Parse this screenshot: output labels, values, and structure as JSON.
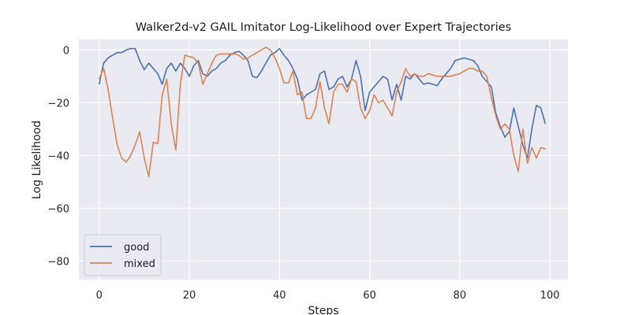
{
  "chart_data": {
    "type": "line",
    "title": "Walker2d-v2 GAIL Imitator Log-Likelihood over Expert Trajectories",
    "xlabel": "Steps",
    "ylabel": "Log Likelihood",
    "xlim": [
      -4.5,
      104
    ],
    "ylim": [
      -87,
      4
    ],
    "xticks": [
      0,
      20,
      40,
      60,
      80,
      100
    ],
    "yticks": [
      0,
      -20,
      -40,
      -60,
      -80
    ],
    "grid": true,
    "legend_position": "lower-left",
    "series": [
      {
        "name": "good",
        "color": "#4c72b0",
        "x": [
          0,
          1,
          2,
          3,
          4,
          5,
          6,
          7,
          8,
          9,
          10,
          11,
          12,
          13,
          14,
          15,
          16,
          17,
          18,
          19,
          20,
          21,
          22,
          23,
          24,
          25,
          26,
          27,
          28,
          29,
          30,
          31,
          32,
          33,
          34,
          35,
          36,
          37,
          38,
          39,
          40,
          41,
          42,
          43,
          44,
          45,
          46,
          47,
          48,
          49,
          50,
          51,
          52,
          53,
          54,
          55,
          56,
          57,
          58,
          59,
          60,
          61,
          62,
          63,
          64,
          65,
          66,
          67,
          68,
          69,
          70,
          71,
          72,
          73,
          74,
          75,
          76,
          77,
          78,
          79,
          80,
          81,
          82,
          83,
          84,
          85,
          86,
          87,
          88,
          89,
          90,
          91,
          92,
          93,
          94,
          95,
          96,
          97,
          98,
          99
        ],
        "y": [
          -13,
          -5,
          -3,
          -2,
          -1,
          -1,
          0,
          0.5,
          0.5,
          -4,
          -7.5,
          -5,
          -7,
          -9,
          -13,
          -7,
          -5,
          -8,
          -5,
          -7,
          -10,
          -6,
          -4,
          -9,
          -10,
          -8,
          -7,
          -5,
          -4,
          -2,
          -1,
          -0.5,
          -2,
          -4,
          -10,
          -10.5,
          -8,
          -5,
          -2,
          -1,
          0.5,
          -2,
          -4,
          -7,
          -11,
          -19,
          -17,
          -16,
          -15,
          -9,
          -8,
          -15,
          -14,
          -11,
          -10,
          -14,
          -11,
          -4,
          -10,
          -23,
          -16,
          -14,
          -12,
          -10,
          -11,
          -19,
          -13,
          -19,
          -10,
          -11,
          -9,
          -11,
          -13,
          -12.5,
          -13,
          -13.5,
          -11,
          -9,
          -7,
          -4,
          -3.5,
          -3,
          -3.5,
          -4,
          -6,
          -10,
          -12,
          -14,
          -24,
          -29,
          -33,
          -31,
          -22,
          -29,
          -36,
          -41,
          -30,
          -21,
          -22,
          -28
        ]
      },
      {
        "name": "mixed",
        "color": "#dd8452",
        "x": [
          0,
          1,
          2,
          3,
          4,
          5,
          6,
          7,
          8,
          9,
          10,
          11,
          12,
          13,
          14,
          15,
          16,
          17,
          18,
          19,
          20,
          21,
          22,
          23,
          24,
          25,
          26,
          27,
          28,
          29,
          30,
          31,
          32,
          33,
          34,
          35,
          36,
          37,
          38,
          39,
          40,
          41,
          42,
          43,
          44,
          45,
          46,
          47,
          48,
          49,
          50,
          51,
          52,
          53,
          54,
          55,
          56,
          57,
          58,
          59,
          60,
          61,
          62,
          63,
          64,
          65,
          66,
          67,
          68,
          69,
          70,
          71,
          72,
          73,
          74,
          75,
          76,
          77,
          78,
          79,
          80,
          81,
          82,
          83,
          84,
          85,
          86,
          87,
          88,
          89,
          90,
          91,
          92,
          93,
          94,
          95,
          96,
          97,
          98,
          99
        ],
        "y": [
          -11,
          -7,
          -15,
          -26,
          -36,
          -41,
          -42.5,
          -40,
          -36,
          -31,
          -41,
          -48,
          -35,
          -35.5,
          -17,
          -11,
          -28,
          -38,
          -13,
          -2,
          -2.5,
          -3,
          -5,
          -13,
          -9,
          -5,
          -2,
          -1.5,
          -1.5,
          -1.5,
          -1.5,
          -2,
          -3.5,
          -3,
          -2,
          -1,
          0,
          1,
          0,
          -3,
          -7,
          -12.5,
          -12.5,
          -8,
          -17,
          -16,
          -26,
          -26,
          -22,
          -12,
          -22,
          -28,
          -16,
          -13,
          -13,
          -16,
          -11,
          -12,
          -22,
          -26,
          -23,
          -17,
          -20,
          -19,
          -22,
          -25,
          -16,
          -12,
          -7,
          -10,
          -9,
          -10,
          -10,
          -9,
          -9.5,
          -10,
          -10,
          -10,
          -10,
          -9.5,
          -9,
          -8,
          -7,
          -7,
          -8,
          -8,
          -10,
          -18,
          -25,
          -30,
          -28,
          -30,
          -40,
          -46,
          -30,
          -43,
          -37,
          -41,
          -37,
          -37.5
        ]
      }
    ]
  }
}
